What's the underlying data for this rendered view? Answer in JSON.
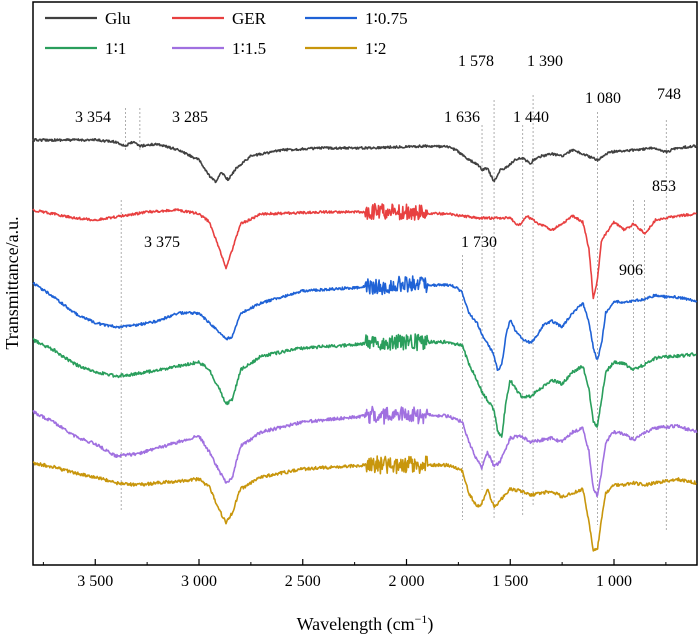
{
  "chart_data": {
    "type": "line",
    "xlabel": "Wavelength (cm",
    "xlabel_sup": "−1",
    "xlabel_end": ")",
    "ylabel": "Transmittance/a.u.",
    "xlim": [
      3800,
      600
    ],
    "x_reversed": true,
    "x_ticks": [
      3500,
      3000,
      2500,
      2000,
      1500,
      1000
    ],
    "x_tick_labels": [
      "3 500",
      "3 000",
      "2 500",
      "2 000",
      "1 500",
      "1 000"
    ],
    "grid": false,
    "legend_position": "top-left",
    "series": [
      {
        "name": "Glu",
        "color": "#404040",
        "offset": 140,
        "noise": 1.2,
        "points": [
          [
            3800,
            0
          ],
          [
            3500,
            0
          ],
          [
            3400,
            2
          ],
          [
            3354,
            6
          ],
          [
            3320,
            2
          ],
          [
            3285,
            6
          ],
          [
            3200,
            4
          ],
          [
            3100,
            10
          ],
          [
            3000,
            20
          ],
          [
            2950,
            36
          ],
          [
            2920,
            42
          ],
          [
            2890,
            32
          ],
          [
            2860,
            40
          ],
          [
            2820,
            28
          ],
          [
            2750,
            16
          ],
          [
            2600,
            10
          ],
          [
            2400,
            8
          ],
          [
            2200,
            8
          ],
          [
            1900,
            6
          ],
          [
            1800,
            7
          ],
          [
            1760,
            10
          ],
          [
            1700,
            20
          ],
          [
            1660,
            24
          ],
          [
            1636,
            30
          ],
          [
            1610,
            28
          ],
          [
            1578,
            42
          ],
          [
            1550,
            30
          ],
          [
            1520,
            28
          ],
          [
            1480,
            20
          ],
          [
            1440,
            18
          ],
          [
            1400,
            24
          ],
          [
            1390,
            20
          ],
          [
            1350,
            16
          ],
          [
            1300,
            14
          ],
          [
            1250,
            16
          ],
          [
            1200,
            10
          ],
          [
            1150,
            14
          ],
          [
            1080,
            20
          ],
          [
            1020,
            12
          ],
          [
            900,
            10
          ],
          [
            800,
            8
          ],
          [
            748,
            12
          ],
          [
            700,
            8
          ],
          [
            600,
            6
          ]
        ]
      },
      {
        "name": "GER",
        "color": "#e84040",
        "offset": 210,
        "noise": 1.2,
        "points": [
          [
            3800,
            0
          ],
          [
            3700,
            4
          ],
          [
            3600,
            8
          ],
          [
            3500,
            10
          ],
          [
            3375,
            6
          ],
          [
            3250,
            2
          ],
          [
            3100,
            0
          ],
          [
            3000,
            4
          ],
          [
            2950,
            12
          ],
          [
            2900,
            40
          ],
          [
            2870,
            58
          ],
          [
            2840,
            40
          ],
          [
            2800,
            14
          ],
          [
            2700,
            4
          ],
          [
            2400,
            2
          ],
          [
            2000,
            2
          ],
          [
            1800,
            4
          ],
          [
            1730,
            6
          ],
          [
            1650,
            8
          ],
          [
            1500,
            8
          ],
          [
            1460,
            16
          ],
          [
            1420,
            6
          ],
          [
            1360,
            14
          ],
          [
            1300,
            20
          ],
          [
            1250,
            14
          ],
          [
            1200,
            6
          ],
          [
            1150,
            12
          ],
          [
            1120,
            40
          ],
          [
            1100,
            88
          ],
          [
            1080,
            70
          ],
          [
            1060,
            30
          ],
          [
            1000,
            12
          ],
          [
            950,
            20
          ],
          [
            906,
            14
          ],
          [
            870,
            20
          ],
          [
            853,
            24
          ],
          [
            800,
            10
          ],
          [
            700,
            6
          ],
          [
            600,
            4
          ]
        ]
      },
      {
        "name": "1∶0.75",
        "color": "#1f62d6",
        "offset": 283,
        "noise": 1.3,
        "points": [
          [
            3800,
            0
          ],
          [
            3700,
            14
          ],
          [
            3600,
            30
          ],
          [
            3500,
            40
          ],
          [
            3400,
            44
          ],
          [
            3300,
            42
          ],
          [
            3200,
            38
          ],
          [
            3100,
            30
          ],
          [
            3000,
            30
          ],
          [
            2950,
            40
          ],
          [
            2900,
            50
          ],
          [
            2870,
            56
          ],
          [
            2840,
            54
          ],
          [
            2800,
            30
          ],
          [
            2700,
            20
          ],
          [
            2500,
            8
          ],
          [
            2200,
            4
          ],
          [
            2000,
            2
          ],
          [
            1800,
            2
          ],
          [
            1760,
            4
          ],
          [
            1730,
            10
          ],
          [
            1700,
            30
          ],
          [
            1660,
            40
          ],
          [
            1636,
            52
          ],
          [
            1610,
            60
          ],
          [
            1578,
            72
          ],
          [
            1560,
            88
          ],
          [
            1540,
            80
          ],
          [
            1520,
            52
          ],
          [
            1500,
            36
          ],
          [
            1480,
            46
          ],
          [
            1440,
            56
          ],
          [
            1400,
            60
          ],
          [
            1370,
            52
          ],
          [
            1340,
            42
          ],
          [
            1300,
            38
          ],
          [
            1250,
            44
          ],
          [
            1200,
            30
          ],
          [
            1150,
            20
          ],
          [
            1120,
            40
          ],
          [
            1100,
            64
          ],
          [
            1080,
            78
          ],
          [
            1060,
            60
          ],
          [
            1040,
            30
          ],
          [
            1000,
            18
          ],
          [
            950,
            20
          ],
          [
            906,
            18
          ],
          [
            850,
            16
          ],
          [
            800,
            12
          ],
          [
            748,
            14
          ],
          [
            700,
            14
          ],
          [
            600,
            18
          ]
        ]
      },
      {
        "name": "1∶1",
        "color": "#2a9e5c",
        "offset": 340,
        "noise": 1.6,
        "points": [
          [
            3800,
            0
          ],
          [
            3700,
            10
          ],
          [
            3600,
            24
          ],
          [
            3500,
            32
          ],
          [
            3400,
            36
          ],
          [
            3300,
            34
          ],
          [
            3200,
            30
          ],
          [
            3100,
            26
          ],
          [
            3000,
            22
          ],
          [
            2950,
            30
          ],
          [
            2900,
            50
          ],
          [
            2870,
            64
          ],
          [
            2840,
            60
          ],
          [
            2800,
            30
          ],
          [
            2700,
            16
          ],
          [
            2500,
            8
          ],
          [
            2200,
            4
          ],
          [
            2000,
            2
          ],
          [
            1800,
            2
          ],
          [
            1730,
            6
          ],
          [
            1700,
            24
          ],
          [
            1660,
            40
          ],
          [
            1636,
            52
          ],
          [
            1610,
            60
          ],
          [
            1578,
            70
          ],
          [
            1560,
            92
          ],
          [
            1540,
            96
          ],
          [
            1520,
            60
          ],
          [
            1500,
            40
          ],
          [
            1470,
            50
          ],
          [
            1440,
            58
          ],
          [
            1400,
            56
          ],
          [
            1350,
            48
          ],
          [
            1300,
            40
          ],
          [
            1250,
            44
          ],
          [
            1200,
            32
          ],
          [
            1150,
            26
          ],
          [
            1120,
            50
          ],
          [
            1100,
            82
          ],
          [
            1080,
            86
          ],
          [
            1060,
            60
          ],
          [
            1040,
            32
          ],
          [
            1000,
            22
          ],
          [
            950,
            24
          ],
          [
            906,
            30
          ],
          [
            850,
            24
          ],
          [
            800,
            18
          ],
          [
            700,
            16
          ],
          [
            600,
            14
          ]
        ]
      },
      {
        "name": "1∶1.5",
        "color": "#a070e0",
        "offset": 412,
        "noise": 1.6,
        "points": [
          [
            3800,
            0
          ],
          [
            3700,
            10
          ],
          [
            3600,
            24
          ],
          [
            3500,
            32
          ],
          [
            3400,
            44
          ],
          [
            3300,
            42
          ],
          [
            3200,
            36
          ],
          [
            3100,
            30
          ],
          [
            3000,
            24
          ],
          [
            2950,
            40
          ],
          [
            2900,
            60
          ],
          [
            2870,
            70
          ],
          [
            2840,
            66
          ],
          [
            2800,
            34
          ],
          [
            2700,
            20
          ],
          [
            2500,
            10
          ],
          [
            2200,
            4
          ],
          [
            2000,
            2
          ],
          [
            1800,
            4
          ],
          [
            1730,
            10
          ],
          [
            1700,
            30
          ],
          [
            1660,
            48
          ],
          [
            1636,
            56
          ],
          [
            1610,
            40
          ],
          [
            1578,
            54
          ],
          [
            1550,
            50
          ],
          [
            1500,
            26
          ],
          [
            1450,
            24
          ],
          [
            1400,
            30
          ],
          [
            1350,
            28
          ],
          [
            1300,
            26
          ],
          [
            1250,
            30
          ],
          [
            1200,
            20
          ],
          [
            1150,
            16
          ],
          [
            1120,
            40
          ],
          [
            1100,
            76
          ],
          [
            1080,
            84
          ],
          [
            1060,
            60
          ],
          [
            1040,
            30
          ],
          [
            1000,
            20
          ],
          [
            950,
            22
          ],
          [
            906,
            28
          ],
          [
            850,
            20
          ],
          [
            800,
            16
          ],
          [
            700,
            14
          ],
          [
            600,
            20
          ]
        ]
      },
      {
        "name": "1∶2",
        "color": "#c8960c",
        "offset": 463,
        "noise": 1.6,
        "points": [
          [
            3800,
            0
          ],
          [
            3700,
            4
          ],
          [
            3600,
            10
          ],
          [
            3500,
            14
          ],
          [
            3400,
            20
          ],
          [
            3300,
            22
          ],
          [
            3200,
            20
          ],
          [
            3100,
            18
          ],
          [
            3000,
            16
          ],
          [
            2950,
            24
          ],
          [
            2900,
            48
          ],
          [
            2870,
            60
          ],
          [
            2840,
            50
          ],
          [
            2800,
            26
          ],
          [
            2700,
            14
          ],
          [
            2500,
            6
          ],
          [
            2200,
            2
          ],
          [
            2000,
            2
          ],
          [
            1800,
            2
          ],
          [
            1730,
            8
          ],
          [
            1700,
            30
          ],
          [
            1660,
            44
          ],
          [
            1636,
            40
          ],
          [
            1610,
            26
          ],
          [
            1578,
            44
          ],
          [
            1550,
            38
          ],
          [
            1500,
            26
          ],
          [
            1450,
            28
          ],
          [
            1400,
            32
          ],
          [
            1350,
            30
          ],
          [
            1300,
            28
          ],
          [
            1250,
            34
          ],
          [
            1200,
            30
          ],
          [
            1150,
            26
          ],
          [
            1120,
            60
          ],
          [
            1100,
            88
          ],
          [
            1080,
            86
          ],
          [
            1060,
            56
          ],
          [
            1040,
            30
          ],
          [
            1000,
            22
          ],
          [
            950,
            22
          ],
          [
            906,
            20
          ],
          [
            850,
            22
          ],
          [
            800,
            20
          ],
          [
            700,
            16
          ],
          [
            600,
            20
          ]
        ]
      }
    ],
    "annotations": [
      {
        "text": "3 354",
        "x": 3354
      },
      {
        "text": "3 285",
        "x": 3285
      },
      {
        "text": "3 375",
        "x": 3375
      },
      {
        "text": "1 636",
        "x": 1636
      },
      {
        "text": "1 578",
        "x": 1578
      },
      {
        "text": "1 390",
        "x": 1390
      },
      {
        "text": "1 440",
        "x": 1440
      },
      {
        "text": "1 730",
        "x": 1730
      },
      {
        "text": "1 080",
        "x": 1080
      },
      {
        "text": "748",
        "x": 748
      },
      {
        "text": "853",
        "x": 853
      },
      {
        "text": "906",
        "x": 906
      }
    ]
  }
}
